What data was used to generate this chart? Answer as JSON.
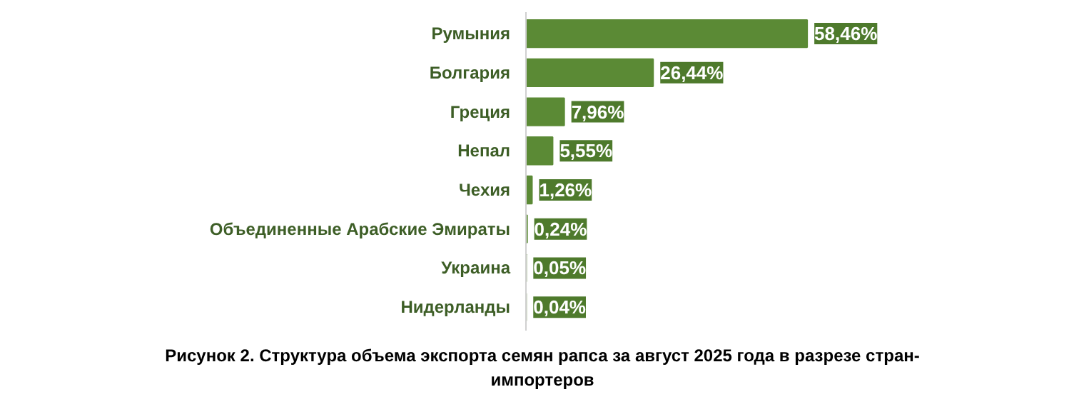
{
  "chart_data": {
    "type": "bar",
    "orientation": "horizontal",
    "title": "Рисунок 2. Структура объема экспорта семян рапса за август 2025 года в разрезе стран-импортеров",
    "categories": [
      "Румыния",
      "Болгария",
      "Греция",
      "Непал",
      "Чехия",
      "Объединенные Арабские Эмираты",
      "Украина",
      "Нидерланды"
    ],
    "values": [
      58.46,
      26.44,
      7.96,
      5.55,
      1.26,
      0.24,
      0.05,
      0.04
    ],
    "value_labels": [
      "58,46%",
      "26,44%",
      "7,96%",
      "5,55%",
      "1,26%",
      "0,24%",
      "0,05%",
      "0,04%"
    ],
    "color": "#5b8a35",
    "grid": false
  }
}
